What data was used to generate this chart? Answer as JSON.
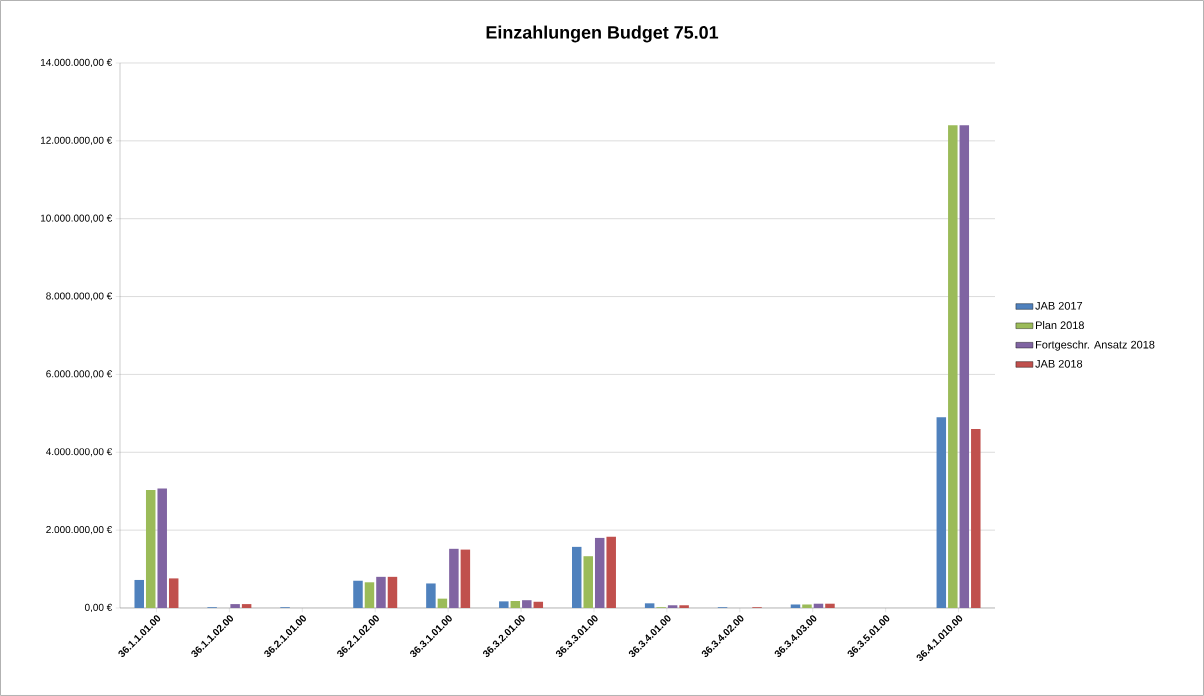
{
  "chart_data": {
    "type": "bar",
    "title": "Einzahlungen Budget 75.01",
    "categories": [
      "36.1.1.01.00",
      "36.1.1.02.00",
      "36.2.1.01.00",
      "36.2.1.02.00",
      "36.3.1.01.00",
      "36.3.2.01.00",
      "36.3.3.01.00",
      "36.3.4.01.00",
      "36.3.4.02.00",
      "36.3.4.03.00",
      "36.3.5.01.00",
      "36.4.1.010.00"
    ],
    "series": [
      {
        "name": "JAB 2017",
        "color": "#4f81bd",
        "values": [
          720000,
          20000,
          20000,
          700000,
          630000,
          170000,
          1570000,
          120000,
          20000,
          90000,
          0,
          4900000
        ]
      },
      {
        "name": "Plan 2018",
        "color": "#9bbb59",
        "values": [
          3030000,
          0,
          0,
          660000,
          240000,
          180000,
          1330000,
          20000,
          0,
          90000,
          0,
          12400000
        ]
      },
      {
        "name": "Fortgeschr. Ansatz 2018",
        "color": "#8064a2",
        "values": [
          3070000,
          100000,
          0,
          800000,
          1520000,
          200000,
          1800000,
          70000,
          0,
          110000,
          0,
          12400000
        ]
      },
      {
        "name": "JAB 2018",
        "color": "#c0504d",
        "values": [
          760000,
          100000,
          0,
          800000,
          1500000,
          160000,
          1830000,
          70000,
          20000,
          110000,
          0,
          4600000
        ]
      }
    ],
    "ylim": [
      0,
      14000000
    ],
    "yticks": [
      {
        "value": 0,
        "label": "0,00 €"
      },
      {
        "value": 2000000,
        "label": "2.000.000,00 €"
      },
      {
        "value": 4000000,
        "label": "4.000.000,00 €"
      },
      {
        "value": 6000000,
        "label": "6.000.000,00 €"
      },
      {
        "value": 8000000,
        "label": "8.000.000,00 €"
      },
      {
        "value": 10000000,
        "label": "10.000.000,00 €"
      },
      {
        "value": 12000000,
        "label": "12.000.000,00 €"
      },
      {
        "value": 14000000,
        "label": "14.000.000,00 €"
      }
    ],
    "grid": "y",
    "legend": "right"
  }
}
